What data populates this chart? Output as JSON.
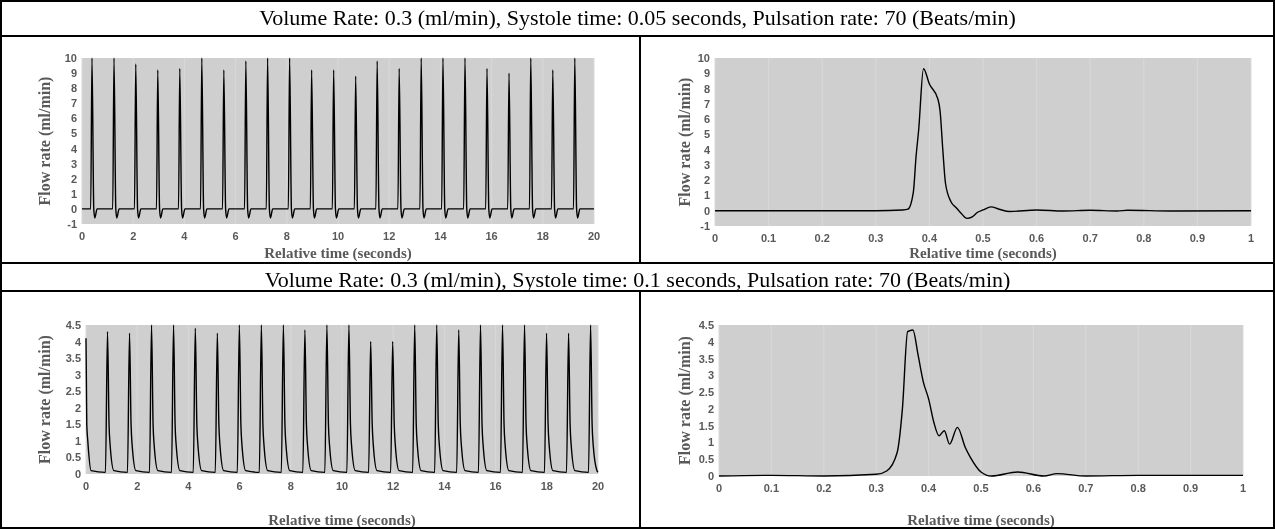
{
  "chart_data": [
    {
      "type": "line",
      "title": "Volume Rate: 0.3 (ml/min), Systole time: 0.05 seconds, Pulsation rate: 70 (Beats/min)",
      "xlabel": "Relative time (seconds)",
      "ylabel": "Flow rate (ml/min)",
      "xlim": [
        0,
        20
      ],
      "xticks": [
        0,
        2,
        4,
        6,
        8,
        10,
        12,
        14,
        16,
        18,
        20
      ],
      "ylim": [
        -1,
        10
      ],
      "yticks": [
        -1,
        0,
        1,
        2,
        3,
        4,
        5,
        6,
        7,
        8,
        9,
        10
      ],
      "grid": "x",
      "series": [
        {
          "color": "#000000",
          "x": [
            0,
            0.34,
            0.39,
            0.46,
            0.5,
            0.59,
            1.2,
            1.25,
            1.32,
            1.36,
            1.45,
            2.05,
            2.1,
            2.17,
            2.21,
            2.3,
            2.91,
            2.96,
            3.03,
            3.07,
            3.16,
            3.77,
            3.82,
            3.89,
            3.93,
            4.02,
            4.63,
            4.68,
            4.75,
            4.79,
            4.88,
            5.49,
            5.54,
            5.61,
            5.65,
            5.74,
            6.35,
            6.4,
            6.47,
            6.51,
            6.6,
            7.2,
            7.25,
            7.32,
            7.36,
            7.45,
            8.06,
            8.11,
            8.18,
            8.22,
            8.31,
            8.92,
            8.97,
            9.04,
            9.08,
            9.17,
            9.78,
            9.83,
            9.9,
            9.94,
            10.03,
            10.64,
            10.69,
            10.76,
            10.8,
            10.89,
            11.48,
            11.53,
            11.6,
            11.64,
            11.73,
            12.34,
            12.39,
            12.46,
            12.5,
            12.59,
            13.2,
            13.25,
            13.32,
            13.36,
            13.45,
            14.05,
            14.1,
            14.17,
            14.21,
            14.3,
            14.91,
            14.96,
            15.03,
            15.07,
            15.16,
            15.77,
            15.82,
            15.89,
            15.93,
            16.02,
            16.63,
            16.68,
            16.75,
            16.79,
            16.88,
            17.48,
            17.53,
            17.6,
            17.64,
            17.73,
            18.34,
            18.39,
            18.46,
            18.5,
            18.59,
            19.2,
            19.25,
            19.32,
            19.36,
            19.45,
            20
          ],
          "values": [
            0,
            0,
            10,
            0,
            -0.6,
            0,
            0,
            10,
            0,
            -0.6,
            0,
            0,
            9.6,
            0,
            -0.6,
            0,
            0,
            9.2,
            0,
            -0.6,
            0,
            0,
            9.3,
            0,
            -0.6,
            0,
            0,
            10,
            0,
            -0.6,
            0,
            0,
            9.2,
            0,
            -0.6,
            0,
            0,
            9.8,
            0,
            -0.6,
            0,
            0,
            10,
            0,
            -0.6,
            0,
            0,
            10,
            0,
            -0.6,
            0,
            0,
            9.2,
            0,
            -0.6,
            0,
            0,
            9.2,
            0,
            -0.6,
            0,
            0,
            8.8,
            0,
            -0.6,
            0,
            0,
            9.8,
            0,
            -0.6,
            0,
            0,
            9.3,
            0,
            -0.6,
            0,
            0,
            10,
            0,
            -0.6,
            0,
            0,
            10,
            0,
            -0.6,
            0,
            0,
            10,
            0,
            -0.6,
            0,
            0,
            9.3,
            0,
            -0.6,
            0,
            0,
            9,
            0,
            -0.6,
            0,
            0,
            10,
            0,
            -0.6,
            0,
            0,
            9.2,
            0,
            -0.6,
            0,
            0,
            10,
            0,
            -0.6,
            0,
            0
          ]
        }
      ]
    },
    {
      "type": "line",
      "xlabel": "Relative time (seconds)",
      "ylabel": "Flow rate (ml/min)",
      "xlim": [
        0,
        1
      ],
      "xticks": [
        0,
        0.1,
        0.2,
        0.3,
        0.4,
        0.5,
        0.6,
        0.7,
        0.8,
        0.9,
        1
      ],
      "ylim": [
        -1,
        10
      ],
      "yticks": [
        -1,
        0,
        1,
        2,
        3,
        4,
        5,
        6,
        7,
        8,
        9,
        10
      ],
      "grid": "x",
      "series": [
        {
          "color": "#000000",
          "x": [
            0,
            0.1,
            0.2,
            0.3,
            0.35,
            0.36,
            0.37,
            0.375,
            0.38,
            0.389,
            0.4,
            0.416,
            0.42,
            0.425,
            0.43,
            0.44,
            0.45,
            0.46,
            0.47,
            0.48,
            0.49,
            0.5,
            0.515,
            0.53,
            0.55,
            0.6,
            0.65,
            0.7,
            0.75,
            0.77,
            0.85,
            1
          ],
          "values": [
            0,
            0,
            0,
            0,
            0.05,
            0.1,
            1.2,
            3.5,
            5.3,
            9.3,
            8.3,
            7.3,
            6.5,
            4,
            1.8,
            0.6,
            0.2,
            -0.2,
            -0.5,
            -0.4,
            -0.1,
            0.05,
            0.25,
            0.1,
            -0.05,
            0.05,
            -0.02,
            0.03,
            -0.02,
            0.03,
            -0.02,
            0
          ]
        }
      ]
    },
    {
      "type": "line",
      "title": "Volume Rate: 0.3 (ml/min), Systole time: 0.1 seconds, Pulsation rate: 70 (Beats/min)",
      "xlabel": "Relative time (seconds)",
      "ylabel": "Flow rate (ml/min)",
      "xlim": [
        0,
        20
      ],
      "xticks": [
        0,
        2,
        4,
        6,
        8,
        10,
        12,
        14,
        16,
        18,
        20
      ],
      "ylim": [
        0,
        4.5
      ],
      "yticks": [
        0,
        0.5,
        1,
        1.5,
        2,
        2.5,
        3,
        3.5,
        4,
        4.5
      ],
      "grid": "x",
      "series": [
        {
          "color": "#000000",
          "x": [
            0,
            0.03,
            0.07,
            0.2,
            0.76,
            0.84,
            0.9,
            0.94,
            1.09,
            1.62,
            1.7,
            1.76,
            1.8,
            1.95,
            2.48,
            2.56,
            2.62,
            2.66,
            2.81,
            3.34,
            3.42,
            3.48,
            3.52,
            3.67,
            4.19,
            4.27,
            4.33,
            4.37,
            4.52,
            5.05,
            5.13,
            5.19,
            5.23,
            5.38,
            5.91,
            5.99,
            6.05,
            6.09,
            6.24,
            6.77,
            6.85,
            6.91,
            6.95,
            7.1,
            7.63,
            7.71,
            7.77,
            7.81,
            7.96,
            8.47,
            8.55,
            8.61,
            8.65,
            8.8,
            9.33,
            9.41,
            9.47,
            9.51,
            9.66,
            10.19,
            10.27,
            10.33,
            10.37,
            10.52,
            11.04,
            11.12,
            11.18,
            11.22,
            11.37,
            11.9,
            11.98,
            12.04,
            12.08,
            12.23,
            12.76,
            12.84,
            12.9,
            12.94,
            13.09,
            13.62,
            13.7,
            13.76,
            13.8,
            13.95,
            14.48,
            14.56,
            14.62,
            14.66,
            14.81,
            15.33,
            15.41,
            15.47,
            15.51,
            15.66,
            16.19,
            16.27,
            16.33,
            16.37,
            16.52,
            17.05,
            17.13,
            17.19,
            17.23,
            17.38,
            17.91,
            17.99,
            18.05,
            18.09,
            18.24,
            18.77,
            18.85,
            18.91,
            18.95,
            19.1,
            19.63,
            19.71,
            19.77,
            19.81,
            19.96,
            20
          ],
          "values": [
            4.1,
            1.5,
            1,
            0.1,
            0.05,
            4.3,
            1.5,
            0.9,
            0.1,
            0.05,
            4.25,
            1.5,
            0.9,
            0.1,
            0.05,
            4.5,
            1.5,
            0.9,
            0.1,
            0.05,
            4.5,
            1.5,
            0.9,
            0.1,
            0.05,
            4.4,
            1.5,
            0.9,
            0.1,
            0.05,
            4.25,
            1.5,
            0.9,
            0.1,
            0.05,
            4.5,
            1.5,
            0.9,
            0.1,
            0.05,
            4.5,
            1.5,
            0.9,
            0.1,
            0.05,
            4.5,
            1.5,
            0.9,
            0.1,
            0.05,
            4.35,
            1.5,
            0.9,
            0.1,
            0.05,
            4.5,
            1.5,
            0.9,
            0.1,
            0.05,
            4.5,
            1.5,
            0.9,
            0.1,
            0.05,
            4,
            1.5,
            0.9,
            0.1,
            0.05,
            4,
            1.5,
            0.9,
            0.1,
            0.05,
            4.5,
            1.5,
            0.9,
            0.1,
            0.05,
            4.5,
            1.5,
            0.9,
            0.1,
            0.05,
            4.35,
            1.5,
            0.9,
            0.1,
            0.05,
            4.5,
            1.5,
            0.9,
            0.1,
            0.05,
            4.5,
            1.5,
            0.9,
            0.1,
            0.05,
            4.5,
            1.5,
            0.9,
            0.1,
            0.05,
            4.25,
            1.5,
            0.9,
            0.1,
            0.05,
            4.25,
            1.5,
            0.9,
            0.1,
            0.05,
            4.5,
            1.5,
            0.9,
            0.1,
            0.05
          ]
        }
      ]
    },
    {
      "type": "line",
      "xlabel": "Relative time (seconds)",
      "ylabel": "Flow rate (ml/min)",
      "xlim": [
        0,
        1
      ],
      "xticks": [
        0,
        0.1,
        0.2,
        0.3,
        0.4,
        0.5,
        0.6,
        0.7,
        0.8,
        0.9,
        1
      ],
      "ylim": [
        0,
        4.5
      ],
      "yticks": [
        0,
        0.5,
        1,
        1.5,
        2,
        2.5,
        3,
        3.5,
        4,
        4.5
      ],
      "grid": "x",
      "series": [
        {
          "color": "#000000",
          "x": [
            0,
            0.1,
            0.2,
            0.3,
            0.32,
            0.34,
            0.35,
            0.36,
            0.37,
            0.38,
            0.39,
            0.4,
            0.41,
            0.42,
            0.43,
            0.44,
            0.455,
            0.47,
            0.48,
            0.5,
            0.52,
            0.57,
            0.62,
            0.645,
            0.7,
            0.8,
            1
          ],
          "values": [
            0,
            0.02,
            0,
            0.05,
            0.15,
            0.7,
            2,
            4.3,
            4.35,
            3.6,
            2.8,
            2.3,
            1.6,
            1.2,
            1.35,
            0.95,
            1.45,
            0.85,
            0.55,
            0.12,
            0,
            0.12,
            0,
            0.07,
            0,
            0.02,
            0.02
          ]
        }
      ]
    }
  ]
}
